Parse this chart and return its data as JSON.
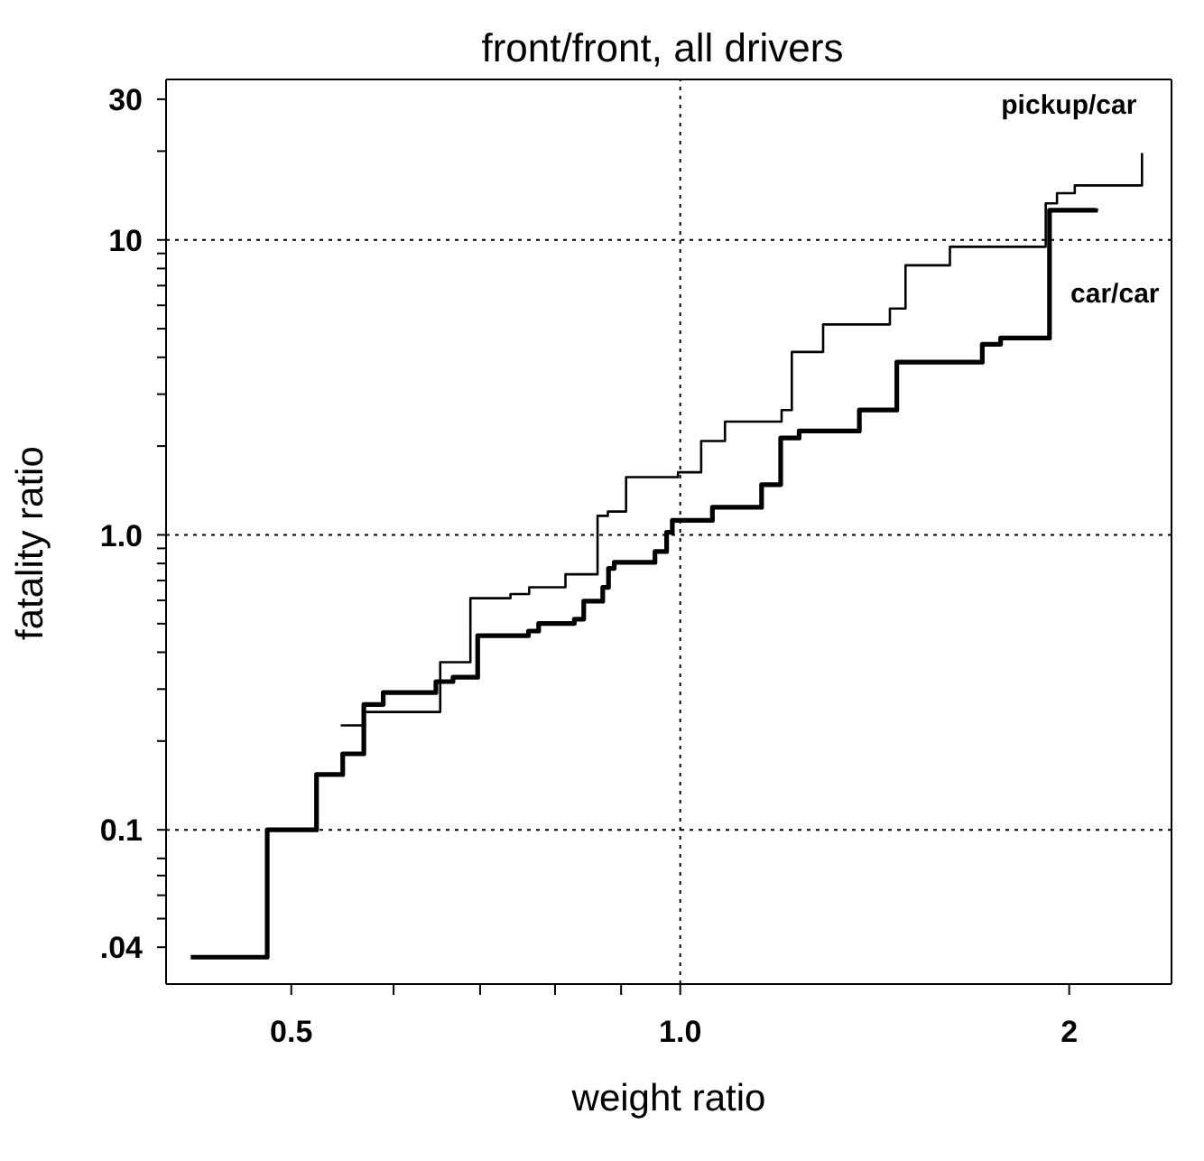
{
  "chart_data": {
    "type": "step",
    "title": "front/front, all drivers",
    "xlabel": "weight ratio",
    "ylabel": "fatality ratio",
    "log": "xy",
    "xlim": [
      0.4,
      2.4
    ],
    "ylim": [
      0.03,
      35
    ],
    "xticks": [
      0.5,
      {
        "value": 0.6,
        "label": null
      },
      {
        "value": 0.7,
        "label": null
      },
      {
        "value": 0.8,
        "label": null
      },
      {
        "value": 0.9,
        "label": null
      },
      {
        "value": 1,
        "label": "1.0"
      },
      2
    ],
    "yticks": [
      {
        "value": 0.04,
        "label": ".04"
      },
      {
        "value": 0.05,
        "label": null
      },
      {
        "value": 0.06,
        "label": null
      },
      {
        "value": 0.07,
        "label": null
      },
      {
        "value": 0.08,
        "label": null
      },
      0.1,
      {
        "value": 0.2,
        "label": null
      },
      {
        "value": 0.3,
        "label": null
      },
      {
        "value": 0.4,
        "label": null
      },
      {
        "value": 0.5,
        "label": null
      },
      {
        "value": 0.6,
        "label": null
      },
      {
        "value": 0.7,
        "label": null
      },
      {
        "value": 0.8,
        "label": null
      },
      {
        "value": 0.9,
        "label": null
      },
      {
        "value": 1,
        "label": "1.0"
      },
      {
        "value": 2,
        "label": null
      },
      {
        "value": 3,
        "label": null
      },
      {
        "value": 4,
        "label": null
      },
      {
        "value": 5,
        "label": null
      },
      {
        "value": 6,
        "label": null
      },
      {
        "value": 7,
        "label": null
      },
      {
        "value": 8,
        "label": null
      },
      {
        "value": 9,
        "label": null
      },
      10,
      {
        "value": 20,
        "label": null
      },
      30
    ],
    "line_style": "solid",
    "marker": "none",
    "ref_lines": [
      {
        "axis": "x",
        "value": 1,
        "line_style": "dotted",
        "color": "#000000"
      },
      {
        "axis": "y",
        "value": 10,
        "line_style": "dotted",
        "color": "#000000"
      },
      {
        "axis": "y",
        "value": 1,
        "line_style": "dotted",
        "color": "#000000"
      },
      {
        "axis": "y",
        "value": 0.1,
        "line_style": "dotted",
        "color": "#000000"
      }
    ],
    "series": [
      {
        "name": "pickup/car",
        "color": "#000000",
        "x": [
          0.546,
          0.569,
          0.652,
          0.688,
          0.739,
          0.764,
          0.815,
          0.863,
          0.879,
          0.908,
          0.996,
          1.038,
          1.083,
          1.198,
          1.22,
          1.29,
          1.453,
          1.494,
          1.617,
          1.918,
          1.957,
          2.02,
          2.277
        ],
        "values": [
          0.226,
          0.251,
          0.37,
          0.61,
          0.63,
          0.664,
          0.735,
          1.16,
          1.2,
          1.57,
          1.63,
          2.08,
          2.42,
          2.65,
          4.17,
          5.17,
          5.85,
          8.2,
          9.48,
          13.3,
          14.4,
          15.3,
          19.7
        ]
      },
      {
        "name": "car/car",
        "color": "#000000",
        "x": [
          0.418,
          0.479,
          0.523,
          0.548,
          0.569,
          0.589,
          0.647,
          0.667,
          0.697,
          0.763,
          0.777,
          0.828,
          0.842,
          0.871,
          0.88,
          0.889,
          0.956,
          0.976,
          0.986,
          1.059,
          1.156,
          1.196,
          1.236,
          1.376,
          1.471,
          1.713,
          1.77,
          1.931,
          2.097
        ],
        "values": [
          0.037,
          0.1,
          0.154,
          0.181,
          0.266,
          0.292,
          0.318,
          0.329,
          0.455,
          0.472,
          0.501,
          0.518,
          0.596,
          0.664,
          0.77,
          0.807,
          0.878,
          1.02,
          1.12,
          1.24,
          1.48,
          2.13,
          2.25,
          2.65,
          3.85,
          4.43,
          4.65,
          12.6,
          12.8
        ]
      }
    ]
  }
}
